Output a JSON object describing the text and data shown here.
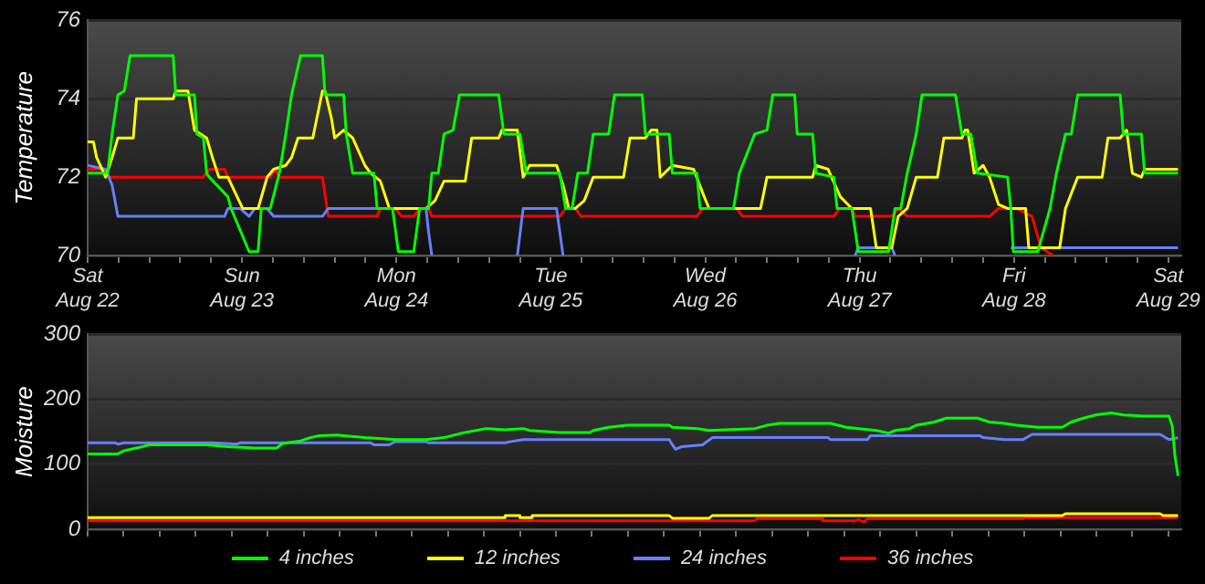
{
  "chart_data": [
    {
      "type": "line",
      "ylabel": "Temperature",
      "xlim": [
        "--08-22T00:00",
        "--08-29T02:00"
      ],
      "ylim": [
        70,
        76
      ],
      "yticks": [
        70,
        72,
        74,
        76
      ],
      "grid": "y",
      "xticks": [
        {
          "value": "--08-22T00:00",
          "label": "Sat Aug 22"
        },
        {
          "value": "--08-22T04:48",
          "label": null
        },
        {
          "value": "--08-22T09:36",
          "label": null
        },
        {
          "value": "--08-22T14:24",
          "label": null
        },
        {
          "value": "--08-22T19:12",
          "label": null
        },
        {
          "value": "--08-23T00:00",
          "label": "Sun Aug 23"
        },
        {
          "value": "--08-23T04:48",
          "label": null
        },
        {
          "value": "--08-23T09:36",
          "label": null
        },
        {
          "value": "--08-23T14:24",
          "label": null
        },
        {
          "value": "--08-23T19:12",
          "label": null
        },
        {
          "value": "--08-24T00:00",
          "label": "Mon Aug 24"
        },
        {
          "value": "--08-24T04:48",
          "label": null
        },
        {
          "value": "--08-24T09:36",
          "label": null
        },
        {
          "value": "--08-24T14:24",
          "label": null
        },
        {
          "value": "--08-24T19:12",
          "label": null
        },
        {
          "value": "--08-25T00:00",
          "label": "Tue Aug 25"
        },
        {
          "value": "--08-25T04:48",
          "label": null
        },
        {
          "value": "--08-25T09:36",
          "label": null
        },
        {
          "value": "--08-25T14:24",
          "label": null
        },
        {
          "value": "--08-25T19:12",
          "label": null
        },
        {
          "value": "--08-26T00:00",
          "label": "Wed Aug 26"
        },
        {
          "value": "--08-26T04:48",
          "label": null
        },
        {
          "value": "--08-26T09:36",
          "label": null
        },
        {
          "value": "--08-26T14:24",
          "label": null
        },
        {
          "value": "--08-26T19:12",
          "label": null
        },
        {
          "value": "--08-27T00:00",
          "label": "Thu Aug 27"
        },
        {
          "value": "--08-27T04:48",
          "label": null
        },
        {
          "value": "--08-27T09:36",
          "label": null
        },
        {
          "value": "--08-27T14:24",
          "label": null
        },
        {
          "value": "--08-27T19:12",
          "label": null
        },
        {
          "value": "--08-28T00:00",
          "label": "Fri Aug 28"
        },
        {
          "value": "--08-28T04:48",
          "label": null
        },
        {
          "value": "--08-28T09:36",
          "label": null
        },
        {
          "value": "--08-28T14:24",
          "label": null
        },
        {
          "value": "--08-28T19:12",
          "label": null
        },
        {
          "value": "--08-29T00:00",
          "label": "Sat Aug 29"
        }
      ],
      "series": [
        {
          "color": "#00ff00",
          "x": [
            "--08-22T00:00",
            "--08-22T03:06",
            "--08-22T03:48",
            "--08-22T04:42",
            "--08-22T05:42",
            "--08-22T06:36",
            "--08-22T13:18",
            "--08-22T13:42",
            "--08-22T14:42",
            "--08-22T16:36",
            "--08-22T17:00",
            "--08-22T18:00",
            "--08-22T18:30",
            "--08-22T18:54",
            "--08-22T21:48",
            "--08-22T22:18",
            "--08-23T01:06",
            "--08-23T02:30",
            "--08-23T03:00",
            "--08-23T04:24",
            "--08-23T05:48",
            "--08-23T06:48",
            "--08-23T07:42",
            "--08-23T09:06",
            "--08-23T12:30",
            "--08-23T12:54",
            "--08-23T15:48",
            "--08-23T16:12",
            "--08-23T17:12",
            "--08-23T20:30",
            "--08-23T21:00",
            "--08-23T23:24",
            "--08-24T00:18",
            "--08-24T02:42",
            "--08-24T03:36",
            "--08-24T05:00",
            "--08-24T05:30",
            "--08-24T06:30",
            "--08-24T07:24",
            "--08-24T08:48",
            "--08-24T09:48",
            "--08-24T15:54",
            "--08-24T16:42",
            "--08-24T19:12",
            "--08-24T20:12",
            "--08-25T01:24",
            "--08-25T02:18",
            "--08-25T03:18",
            "--08-25T04:12",
            "--08-25T05:42",
            "--08-25T06:36",
            "--08-25T09:00",
            "--08-25T09:54",
            "--08-25T14:12",
            "--08-25T14:42",
            "--08-25T18:24",
            "--08-25T18:54",
            "--08-25T22:42",
            "--08-25T23:12",
            "--08-26T04:24",
            "--08-26T05:18",
            "--08-26T07:42",
            "--08-26T09:36",
            "--08-26T10:30",
            "--08-26T13:54",
            "--08-26T14:18",
            "--08-26T16:42",
            "--08-26T17:12",
            "--08-26T20:00",
            "--08-26T20:30",
            "--08-26T22:48",
            "--08-26T23:48",
            "--08-27T04:30",
            "--08-27T05:30",
            "--08-27T06:24",
            "--08-27T07:24",
            "--08-27T08:48",
            "--08-27T09:42",
            "--08-27T14:54",
            "--08-27T15:54",
            "--08-27T17:18",
            "--08-27T18:18",
            "--08-27T23:00",
            "--08-27T23:30",
            "--08-27T23:54",
            "--08-28T03:42",
            "--08-28T05:36",
            "--08-28T06:36",
            "--08-28T08:00",
            "--08-28T08:54",
            "--08-28T09:54",
            "--08-28T16:30",
            "--08-28T17:00",
            "--08-28T19:48",
            "--08-28T20:18",
            "--08-29T01:30"
          ],
          "values": [
            72.1,
            72.1,
            73.1,
            74.1,
            74.2,
            75.1,
            75.1,
            74.1,
            74.1,
            74.1,
            73.1,
            73.0,
            72.1,
            72.0,
            71.5,
            71.2,
            70.1,
            70.1,
            71.2,
            71.2,
            72.1,
            73.1,
            74.1,
            75.1,
            75.1,
            74.1,
            74.1,
            73.1,
            72.1,
            72.1,
            71.2,
            71.2,
            70.1,
            70.1,
            71.2,
            71.2,
            72.1,
            72.1,
            73.1,
            73.2,
            74.1,
            74.1,
            73.1,
            73.1,
            72.1,
            72.1,
            71.2,
            71.2,
            72.1,
            72.1,
            73.1,
            73.1,
            74.1,
            74.1,
            73.1,
            73.1,
            72.1,
            72.1,
            71.2,
            71.2,
            72.1,
            73.1,
            73.2,
            74.1,
            74.1,
            73.1,
            73.1,
            72.1,
            72.0,
            71.2,
            71.2,
            70.1,
            70.1,
            71.2,
            71.2,
            72.1,
            73.1,
            74.1,
            74.1,
            73.1,
            73.1,
            72.1,
            72.0,
            71.2,
            70.1,
            70.1,
            71.2,
            72.1,
            73.1,
            73.1,
            74.1,
            74.1,
            73.1,
            73.1,
            72.1,
            72.1
          ]
        },
        {
          "color": "#ffff00",
          "x": [
            "--08-22T00:00",
            "--08-22T00:54",
            "--08-22T01:24",
            "--08-22T02:48",
            "--08-22T03:48",
            "--08-22T04:42",
            "--08-22T07:06",
            "--08-22T07:36",
            "--08-22T13:18",
            "--08-22T13:42",
            "--08-22T15:36",
            "--08-22T16:36",
            "--08-22T18:30",
            "--08-22T19:24",
            "--08-22T20:24",
            "--08-22T21:48",
            "--08-23T00:06",
            "--08-23T02:30",
            "--08-23T03:54",
            "--08-23T04:54",
            "--08-23T06:48",
            "--08-23T07:42",
            "--08-23T08:42",
            "--08-23T11:00",
            "--08-23T11:30",
            "--08-23T12:30",
            "--08-23T12:54",
            "--08-23T13:54",
            "--08-23T14:24",
            "--08-23T15:48",
            "--08-23T17:12",
            "--08-23T19:06",
            "--08-23T20:00",
            "--08-23T21:30",
            "--08-23T22:54",
            "--08-24T04:36",
            "--08-24T06:00",
            "--08-24T07:24",
            "--08-24T10:42",
            "--08-24T11:42",
            "--08-24T15:54",
            "--08-24T16:24",
            "--08-24T18:48",
            "--08-24T19:42",
            "--08-24T20:42",
            "--08-25T00:54",
            "--08-25T01:54",
            "--08-25T02:48",
            "--08-25T03:48",
            "--08-25T05:12",
            "--08-25T06:36",
            "--08-25T11:18",
            "--08-25T12:18",
            "--08-25T14:42",
            "--08-25T15:36",
            "--08-25T16:30",
            "--08-25T17:00",
            "--08-25T18:54",
            "--08-25T22:12",
            "--08-25T23:36",
            "--08-26T00:36",
            "--08-26T08:36",
            "--08-26T09:36",
            "--08-26T16:42",
            "--08-26T17:12",
            "--08-26T19:06",
            "--08-26T21:00",
            "--08-26T22:48",
            "--08-27T01:42",
            "--08-27T02:36",
            "--08-27T05:00",
            "--08-27T06:00",
            "--08-27T07:24",
            "--08-27T08:48",
            "--08-27T12:06",
            "--08-27T13:06",
            "--08-27T15:54",
            "--08-27T16:24",
            "--08-27T16:48",
            "--08-27T17:48",
            "--08-27T19:12",
            "--08-27T20:12",
            "--08-27T21:36",
            "--08-27T23:00",
            "--08-28T01:48",
            "--08-28T02:18",
            "--08-28T07:06",
            "--08-28T08:00",
            "--08-28T09:54",
            "--08-28T13:42",
            "--08-28T14:36",
            "--08-28T16:30",
            "--08-28T17:30",
            "--08-28T18:24",
            "--08-28T19:48",
            "--08-28T20:18",
            "--08-29T01:30"
          ],
          "values": [
            72.9,
            72.9,
            72.5,
            72.0,
            72.5,
            73.0,
            73.0,
            74.0,
            74.0,
            74.2,
            74.2,
            73.2,
            73.0,
            72.5,
            72.0,
            72.0,
            71.2,
            71.2,
            72.0,
            72.2,
            72.3,
            72.5,
            73.0,
            73.0,
            73.4,
            74.2,
            74.2,
            73.5,
            73.0,
            73.2,
            73.0,
            72.3,
            72.1,
            71.9,
            71.2,
            71.2,
            71.4,
            71.9,
            71.9,
            73.0,
            73.0,
            73.2,
            73.2,
            72.0,
            72.3,
            72.3,
            71.8,
            71.2,
            71.2,
            71.4,
            72.0,
            72.0,
            73.0,
            73.0,
            73.2,
            73.2,
            72.0,
            72.3,
            72.2,
            71.6,
            71.2,
            71.2,
            72.0,
            72.0,
            72.3,
            72.2,
            71.5,
            71.2,
            71.2,
            70.2,
            70.2,
            71.0,
            71.2,
            72.0,
            72.0,
            73.0,
            73.0,
            73.2,
            73.2,
            72.1,
            72.3,
            72.0,
            71.3,
            71.2,
            71.2,
            70.2,
            70.2,
            71.2,
            72.0,
            72.0,
            73.0,
            73.0,
            73.2,
            72.1,
            72.0,
            72.2,
            72.2
          ]
        },
        {
          "color": "#6680ff",
          "x": [
            "--08-22T00:00",
            "--08-22T02:48",
            "--08-22T03:48",
            "--08-22T04:42",
            "--08-22T21:18",
            "--08-22T21:48",
            "--08-22T23:42",
            "--08-23T01:06",
            "--08-23T02:00",
            "--08-23T03:54",
            "--08-23T04:54",
            "--08-23T12:30",
            "--08-23T13:24",
            "--08-24T04:36",
            "--08-24T05:00",
            "--08-24T05:30",
            "--08-24T12:00",
            "--08-24T18:48",
            "--08-24T19:42",
            "--08-25T00:54",
            "--08-25T01:24",
            "--08-25T01:54",
            "--08-26T04:00",
            "--08-26T23:18",
            "--08-26T23:48",
            "--08-27T05:00",
            "--08-27T05:30",
            "--08-27T15:00",
            "--08-27T23:30",
            "--08-28T04:42",
            "--08-28T05:06",
            "--08-29T01:30"
          ],
          "values": [
            72.3,
            72.2,
            71.8,
            71.0,
            71.0,
            71.2,
            71.2,
            71.0,
            71.2,
            71.2,
            71.0,
            71.0,
            71.2,
            71.2,
            70.6,
            70.0,
            null,
            70.0,
            71.2,
            71.2,
            70.6,
            70.0,
            null,
            70.0,
            70.2,
            70.2,
            70.0,
            null,
            70.2,
            70.2,
            70.2,
            70.2
          ]
        },
        {
          "color": "#ff0000",
          "x": [
            "--08-22T00:00",
            "--08-22T02:48",
            "--08-22T03:18",
            "--08-22T18:00",
            "--08-22T18:54",
            "--08-22T21:18",
            "--08-22T21:48",
            "--08-23T04:24",
            "--08-23T05:06",
            "--08-23T05:48",
            "--08-23T12:30",
            "--08-23T13:24",
            "--08-23T21:00",
            "--08-23T21:30",
            "--08-23T23:48",
            "--08-24T00:48",
            "--08-24T02:42",
            "--08-24T03:36",
            "--08-24T05:00",
            "--08-24T05:30",
            "--08-25T01:24",
            "--08-25T02:18",
            "--08-25T03:48",
            "--08-25T04:42",
            "--08-25T22:42",
            "--08-25T23:36",
            "--08-26T04:54",
            "--08-26T05:48",
            "--08-26T20:00",
            "--08-26T20:54",
            "--08-26T22:48",
            "--08-26T23:18",
            "--08-27T05:00",
            "--08-27T06:00",
            "--08-27T07:24",
            "--08-27T20:12",
            "--08-27T21:36",
            "--08-28T00:24",
            "--08-28T02:48",
            "--08-28T04:12",
            "--08-28T06:06"
          ],
          "values": [
            72.2,
            72.2,
            72.0,
            72.0,
            72.2,
            72.2,
            72.0,
            72.0,
            72.2,
            72.0,
            72.0,
            71.0,
            71.0,
            71.2,
            71.2,
            71.0,
            71.0,
            71.2,
            71.2,
            71.0,
            71.0,
            71.2,
            71.2,
            71.0,
            71.0,
            71.2,
            71.2,
            71.0,
            71.0,
            71.2,
            71.2,
            71.0,
            71.0,
            71.2,
            71.0,
            71.0,
            71.2,
            71.2,
            71.0,
            70.2,
            70.0
          ]
        }
      ]
    },
    {
      "type": "line",
      "ylabel": "Moisture",
      "xlim": [
        "--08-22T00:00",
        "--08-29T02:00"
      ],
      "ylim": [
        0,
        300
      ],
      "yticks": [
        0,
        100,
        200,
        300
      ],
      "grid": "y",
      "tick_labels": "y",
      "legend": "bottom",
      "xticks": [
        {
          "value": "--08-22T00:00",
          "label": null
        },
        {
          "value": "--08-22T05:36",
          "label": null
        },
        {
          "value": "--08-22T11:12",
          "label": null
        },
        {
          "value": "--08-22T16:48",
          "label": null
        },
        {
          "value": "--08-22T22:24",
          "label": null
        },
        {
          "value": "--08-23T04:00",
          "label": null
        },
        {
          "value": "--08-23T09:36",
          "label": null
        },
        {
          "value": "--08-23T15:12",
          "label": null
        },
        {
          "value": "--08-23T20:48",
          "label": null
        },
        {
          "value": "--08-24T02:24",
          "label": null
        },
        {
          "value": "--08-24T08:00",
          "label": null
        },
        {
          "value": "--08-24T13:36",
          "label": null
        },
        {
          "value": "--08-24T19:12",
          "label": null
        },
        {
          "value": "--08-25T00:48",
          "label": null
        },
        {
          "value": "--08-25T06:24",
          "label": null
        },
        {
          "value": "--08-25T12:00",
          "label": null
        },
        {
          "value": "--08-25T17:36",
          "label": null
        },
        {
          "value": "--08-25T23:12",
          "label": null
        },
        {
          "value": "--08-26T04:48",
          "label": null
        },
        {
          "value": "--08-26T10:24",
          "label": null
        },
        {
          "value": "--08-26T16:00",
          "label": null
        },
        {
          "value": "--08-26T21:36",
          "label": null
        },
        {
          "value": "--08-27T03:12",
          "label": null
        },
        {
          "value": "--08-27T08:48",
          "label": null
        },
        {
          "value": "--08-27T14:24",
          "label": null
        },
        {
          "value": "--08-27T20:00",
          "label": null
        },
        {
          "value": "--08-28T01:36",
          "label": null
        },
        {
          "value": "--08-28T07:12",
          "label": null
        },
        {
          "value": "--08-28T12:48",
          "label": null
        },
        {
          "value": "--08-28T18:24",
          "label": null
        },
        {
          "value": "--08-29T00:00",
          "label": null
        }
      ],
      "series": [
        {
          "name": "4 inches",
          "color": "#00ff00",
          "x": [
            "--08-22T00:00",
            "--08-22T04:42",
            "--08-22T05:42",
            "--08-22T06:36",
            "--08-22T08:30",
            "--08-22T09:30",
            "--08-22T18:30",
            "--08-22T21:48",
            "--08-23T02:00",
            "--08-23T05:24",
            "--08-23T06:18",
            "--08-23T09:06",
            "--08-23T10:36",
            "--08-23T12:00",
            "--08-23T14:48",
            "--08-23T15:48",
            "--08-23T19:06",
            "--08-23T23:48",
            "--08-24T04:36",
            "--08-24T07:24",
            "--08-24T10:12",
            "--08-24T14:00",
            "--08-24T16:54",
            "--08-24T19:42",
            "--08-24T20:42",
            "--08-25T01:24",
            "--08-25T06:06",
            "--08-25T06:36",
            "--08-25T09:00",
            "--08-25T11:48",
            "--08-25T18:24",
            "--08-25T18:54",
            "--08-25T22:42",
            "--08-26T00:36",
            "--08-26T07:42",
            "--08-26T09:36",
            "--08-26T11:30",
            "--08-26T19:30",
            "--08-26T21:54",
            "--08-26T23:48",
            "--08-27T02:36",
            "--08-27T04:30",
            "--08-27T05:30",
            "--08-27T07:48",
            "--08-27T08:48",
            "--08-27T11:36",
            "--08-27T13:30",
            "--08-27T18:18",
            "--08-27T20:12",
            "--08-27T22:30",
            "--08-28T00:24",
            "--08-28T03:42",
            "--08-28T07:30",
            "--08-28T08:54",
            "--08-28T10:48",
            "--08-28T12:42",
            "--08-28T15:06",
            "--08-28T17:00",
            "--08-28T20:18",
            "--08-29T00:06",
            "--08-29T00:36",
            "--08-29T01:00",
            "--08-29T01:30"
          ],
          "values": [
            116,
            116,
            121,
            123,
            127,
            130,
            130,
            127,
            125,
            125,
            132,
            136,
            141,
            144,
            145,
            144,
            141,
            138,
            138,
            141,
            148,
            155,
            153,
            155,
            152,
            149,
            149,
            152,
            157,
            160,
            160,
            157,
            155,
            152,
            155,
            160,
            163,
            163,
            157,
            155,
            152,
            148,
            152,
            155,
            160,
            165,
            171,
            171,
            165,
            163,
            160,
            157,
            157,
            165,
            171,
            176,
            179,
            176,
            174,
            174,
            159,
            114,
            82
          ]
        },
        {
          "name": "12 inches",
          "color": "#ffff00",
          "x": [
            "--08-22T00:00",
            "--08-24T16:54",
            "--08-24T16:54",
            "--08-24T19:12",
            "--08-24T19:12",
            "--08-24T21:06",
            "--08-24T21:06",
            "--08-25T18:24",
            "--08-25T18:54",
            "--08-26T00:36",
            "--08-26T01:06",
            "--08-28T07:30",
            "--08-28T08:00",
            "--08-28T22:42",
            "--08-28T23:12",
            "--08-29T01:30"
          ],
          "values": [
            18,
            18,
            21,
            21,
            18,
            18,
            21,
            21,
            17,
            17,
            21,
            21,
            24,
            24,
            21,
            21
          ]
        },
        {
          "name": "24 inches",
          "color": "#6680ff",
          "x": [
            "--08-22T00:00",
            "--08-22T04:18",
            "--08-22T04:42",
            "--08-22T05:42",
            "--08-22T19:24",
            "--08-22T23:12",
            "--08-22T23:42",
            "--08-23T20:00",
            "--08-23T20:30",
            "--08-23T22:54",
            "--08-23T23:48",
            "--08-24T04:36",
            "--08-24T05:00",
            "--08-24T16:54",
            "--08-24T17:48",
            "--08-24T19:42",
            "--08-25T18:24",
            "--08-25T18:54",
            "--08-25T19:24",
            "--08-25T20:18",
            "--08-25T23:36",
            "--08-26T01:06",
            "--08-26T19:06",
            "--08-26T19:30",
            "--08-27T01:12",
            "--08-27T01:42",
            "--08-27T18:42",
            "--08-27T19:12",
            "--08-27T22:30",
            "--08-28T01:24",
            "--08-28T02:48",
            "--08-28T22:42",
            "--08-29T00:06",
            "--08-29T01:30"
          ],
          "values": [
            133,
            133,
            131,
            133,
            133,
            131,
            133,
            133,
            130,
            130,
            135,
            135,
            133,
            133,
            135,
            138,
            138,
            130,
            123,
            127,
            130,
            141,
            141,
            138,
            138,
            144,
            144,
            141,
            138,
            138,
            146,
            146,
            138,
            141
          ]
        },
        {
          "name": "36 inches",
          "color": "#ff0000",
          "x": [
            "--08-22T00:00",
            "--08-26T07:42",
            "--08-26T08:00",
            "--08-26T18:06",
            "--08-26T18:18",
            "--08-26T23:18",
            "--08-26T23:48",
            "--08-27T00:42",
            "--08-27T01:12",
            "--08-28T01:24",
            "--08-28T01:48",
            "--08-29T01:30"
          ],
          "values": [
            13,
            13,
            16,
            16,
            13,
            13,
            15,
            11,
            16,
            16,
            18,
            18
          ]
        }
      ]
    }
  ]
}
